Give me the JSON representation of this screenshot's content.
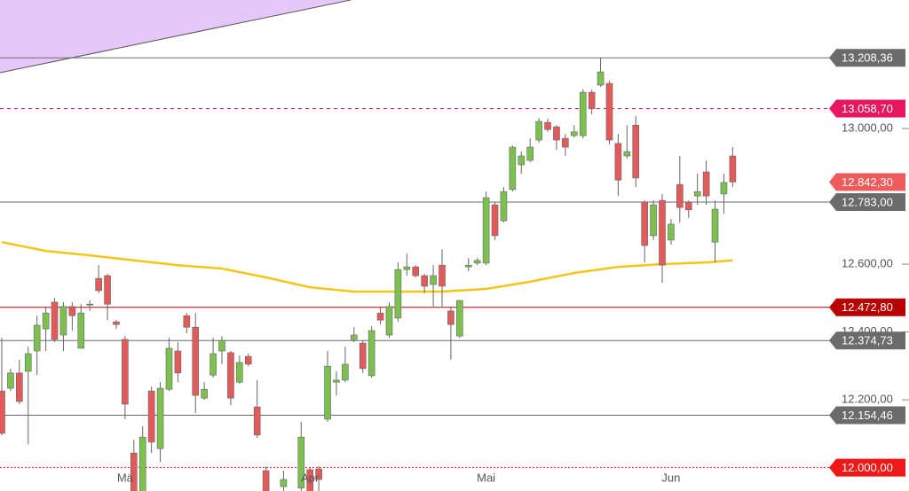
{
  "chart_data": {
    "type": "candlestick",
    "categories": [
      null,
      null,
      null,
      null,
      null,
      null,
      null,
      null,
      null,
      null,
      null,
      null,
      null,
      null,
      "Mä",
      null,
      null,
      null,
      null,
      null,
      null,
      null,
      null,
      null,
      null,
      null,
      null,
      null,
      null,
      null,
      null,
      null,
      null,
      null,
      null,
      "Apr",
      null,
      null,
      null,
      null,
      null,
      null,
      null,
      null,
      null,
      null,
      null,
      null,
      null,
      null,
      null,
      null,
      null,
      null,
      null,
      "Mai",
      null,
      null,
      null,
      null,
      null,
      null,
      null,
      null,
      null,
      null,
      null,
      null,
      null,
      null,
      null,
      null,
      null,
      null,
      null,
      null,
      "Jun",
      null,
      null,
      null,
      null,
      null,
      null,
      null
    ],
    "open": [
      12226,
      12234,
      12279,
      12284,
      12344,
      12409,
      12488,
      12391,
      12475,
      12352,
      12482,
      12558,
      12566,
      12430,
      12378,
      12043,
      11920,
      12226,
      12056,
      12231,
      12344,
      12448,
      12414,
      12205,
      12273,
      12344,
      12339,
      12252,
      12328,
      12179,
      11991,
      null,
      11944,
      null,
      11940,
      11994,
      11996,
      12143,
      12252,
      12258,
      12378,
      12367,
      12271,
      12456,
      12391,
      12441,
      12584,
      12592,
      12566,
      12540,
      12597,
      12462,
      12388,
      12592,
      12603,
      12603,
      12775,
      12728,
      12820,
      12893,
      12906,
      12966,
      13018,
      13005,
      12971,
      12979,
      12979,
      13107,
      13128,
      13133,
      12956,
      12919,
      13010,
      12783,
      12684,
      12788,
      12671,
      12835,
      12783,
      12801,
      12872,
      12665,
      12807,
      12919
    ],
    "high": [
      12383,
      12292,
      12318,
      12357,
      12448,
      12475,
      12501,
      12488,
      12488,
      12482,
      12493,
      12597,
      12571,
      12435,
      12388,
      12082,
      12122,
      12239,
      12252,
      12383,
      12370,
      12456,
      12456,
      12252,
      12383,
      12388,
      12344,
      12331,
      12336,
      12258,
      12004,
      null,
      11991,
      null,
      12135,
      11999,
      12004,
      12344,
      12284,
      12357,
      12414,
      12375,
      12417,
      12475,
      12488,
      12605,
      12631,
      12597,
      12571,
      12597,
      12644,
      12475,
      12493,
      12618,
      12618,
      12814,
      12783,
      12827,
      12950,
      12932,
      12971,
      13031,
      13029,
      13010,
      12984,
      13010,
      13115,
      13115,
      13208.36,
      13141,
      12984,
      13010,
      13037,
      12788,
      12788,
      12807,
      12733,
      12919,
      12788,
      12867,
      12906,
      12788,
      12867,
      12945
    ],
    "low": [
      12096,
      12226,
      12187,
      12069,
      12273,
      12344,
      12370,
      12344,
      12404,
      12352,
      12462,
      12514,
      12435,
      12409,
      12143,
      11900,
      11900,
      12043,
      12017,
      12226,
      12252,
      12396,
      12161,
      12200,
      12265,
      12305,
      12184,
      12247,
      12299,
      12088,
      11900,
      null,
      11920,
      null,
      11920,
      11900,
      11920,
      12135,
      12213,
      12252,
      12370,
      12279,
      12265,
      12422,
      12383,
      12430,
      12566,
      12561,
      12514,
      12475,
      12475,
      12318,
      12383,
      12579,
      12597,
      12597,
      12671,
      12723,
      12814,
      12867,
      12901,
      12958,
      12990,
      12937,
      12919,
      12974,
      12971,
      13042,
      13123,
      12953,
      12801,
      12911,
      12827,
      12605,
      12671,
      12545,
      12658,
      12723,
      12736,
      12775,
      12775,
      12605,
      12749,
      12827
    ],
    "close": [
      12101,
      12279,
      12195,
      12336,
      12420,
      12456,
      12378,
      12475,
      12448,
      12456,
      12480,
      12522,
      12482,
      12422,
      12187,
      11920,
      12090,
      12075,
      12234,
      12352,
      12279,
      12414,
      12213,
      12231,
      12336,
      12375,
      12205,
      12310,
      12305,
      12096,
      11920,
      null,
      11965,
      null,
      12090,
      11920,
      11965,
      12299,
      12258,
      12305,
      12391,
      12292,
      12404,
      12435,
      12475,
      12584,
      12592,
      12566,
      12535,
      12566,
      12535,
      12422,
      12493,
      12597,
      12611,
      12796,
      12684,
      12814,
      12945,
      12919,
      12945,
      13021,
      12997,
      12966,
      12945,
      12990,
      13107,
      13058,
      13167,
      12966,
      12848,
      12932,
      12854,
      12655,
      12775,
      12597,
      12718,
      12767,
      12760,
      12814,
      12801,
      12762,
      12841,
      12842.3
    ],
    "up_color": "#7cc04f",
    "down_color": "#e25a5a",
    "moving_average": {
      "color": "#f5c518",
      "x": [
        0,
        5,
        10,
        15,
        20,
        25,
        30,
        35,
        40,
        45,
        50,
        55,
        60,
        65,
        70,
        75,
        80,
        83
      ],
      "values": [
        12665,
        12639,
        12626,
        12611,
        12597,
        12587,
        12561,
        12532,
        12519,
        12519,
        12519,
        12527,
        12548,
        12574,
        12592,
        12600,
        12605,
        12611
      ]
    },
    "ylim": [
      11931,
      13379
    ],
    "yticks": [
      {
        "value": 12200,
        "label": "12.200,00"
      },
      {
        "value": 12400,
        "label": "12.400,00"
      },
      {
        "value": 12600,
        "label": "12.600,00"
      },
      {
        "value": 13000,
        "label": "13.000,00"
      }
    ],
    "levels": [
      {
        "value": 13208.36,
        "label": "13.208,36",
        "color": "#6b6b6b",
        "style": "solid"
      },
      {
        "value": 13058.7,
        "label": "13.058,70",
        "color": "#e8175d",
        "style": "dashed"
      },
      {
        "value": 12842.3,
        "label": "12.842,30",
        "color": "#ef5b5b",
        "style": "none"
      },
      {
        "value": 12783.0,
        "label": "12.783,00",
        "color": "#6b6b6b",
        "style": "solid"
      },
      {
        "value": 12472.8,
        "label": "12.472,80",
        "color": "#b80000",
        "style": "solid"
      },
      {
        "value": 12374.73,
        "label": "12.374,73",
        "color": "#6b6b6b",
        "style": "solid"
      },
      {
        "value": 12154.46,
        "label": "12.154,46",
        "color": "#6b6b6b",
        "style": "solid"
      },
      {
        "value": 12000.0,
        "label": "12.000,00",
        "color": "#f01818",
        "style": "dotted"
      }
    ]
  }
}
